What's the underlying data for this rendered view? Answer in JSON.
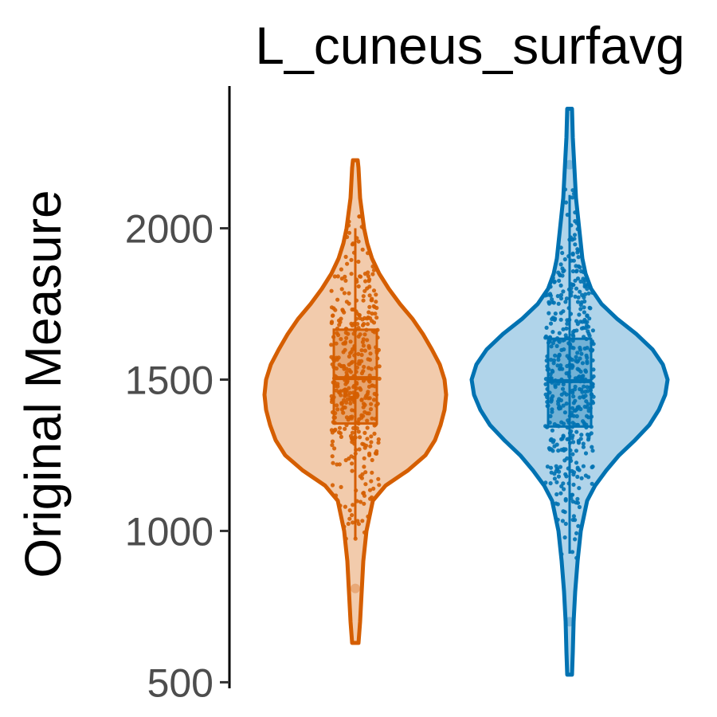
{
  "chart_data": {
    "type": "violin",
    "title": "L_cuneus_surfavg",
    "ylabel": "Original Measure",
    "xlabel": "",
    "ylim": [
      480,
      2470
    ],
    "yticks": [
      500,
      1000,
      1500,
      2000
    ],
    "grid": false,
    "legend": "none",
    "series": [
      {
        "color": "#d55e00",
        "fill": "#f2cbac",
        "box": {
          "q1": 1355,
          "median": 1505,
          "q3": 1665,
          "whisker_low": 975,
          "whisker_high": 2000
        },
        "range": [
          630,
          2225
        ],
        "outliers": [
          810
        ],
        "density": [
          [
            630,
            4
          ],
          [
            700,
            6
          ],
          [
            800,
            8
          ],
          [
            900,
            10
          ],
          [
            1000,
            14
          ],
          [
            1100,
            22
          ],
          [
            1150,
            38
          ],
          [
            1200,
            66
          ],
          [
            1250,
            88
          ],
          [
            1300,
            100
          ],
          [
            1350,
            107
          ],
          [
            1400,
            112
          ],
          [
            1450,
            114
          ],
          [
            1500,
            112
          ],
          [
            1550,
            106
          ],
          [
            1600,
            96
          ],
          [
            1650,
            85
          ],
          [
            1700,
            72
          ],
          [
            1750,
            56
          ],
          [
            1800,
            42
          ],
          [
            1850,
            30
          ],
          [
            1900,
            21
          ],
          [
            1950,
            15
          ],
          [
            2000,
            11
          ],
          [
            2100,
            6
          ],
          [
            2200,
            4
          ],
          [
            2225,
            3
          ]
        ],
        "jitter": {
          "n": 420,
          "mean": 1505,
          "sd": 230,
          "min": 960,
          "max": 2060
        }
      },
      {
        "color": "#0072b2",
        "fill": "#b0d4ea",
        "box": {
          "q1": 1345,
          "median": 1495,
          "q3": 1635,
          "whisker_low": 925,
          "whisker_high": 2110
        },
        "range": [
          525,
          2395
        ],
        "outliers": [
          700,
          2210
        ],
        "density": [
          [
            525,
            3
          ],
          [
            600,
            4
          ],
          [
            700,
            5
          ],
          [
            800,
            7
          ],
          [
            900,
            10
          ],
          [
            1000,
            14
          ],
          [
            1100,
            22
          ],
          [
            1150,
            32
          ],
          [
            1200,
            46
          ],
          [
            1250,
            62
          ],
          [
            1300,
            82
          ],
          [
            1350,
            100
          ],
          [
            1400,
            112
          ],
          [
            1450,
            120
          ],
          [
            1500,
            123
          ],
          [
            1550,
            117
          ],
          [
            1600,
            104
          ],
          [
            1650,
            84
          ],
          [
            1700,
            60
          ],
          [
            1750,
            40
          ],
          [
            1800,
            27
          ],
          [
            1850,
            20
          ],
          [
            1900,
            16
          ],
          [
            2000,
            12
          ],
          [
            2100,
            8
          ],
          [
            2200,
            6
          ],
          [
            2300,
            4
          ],
          [
            2395,
            3
          ]
        ],
        "jitter": {
          "n": 500,
          "mean": 1490,
          "sd": 250,
          "min": 900,
          "max": 2160
        }
      }
    ]
  }
}
